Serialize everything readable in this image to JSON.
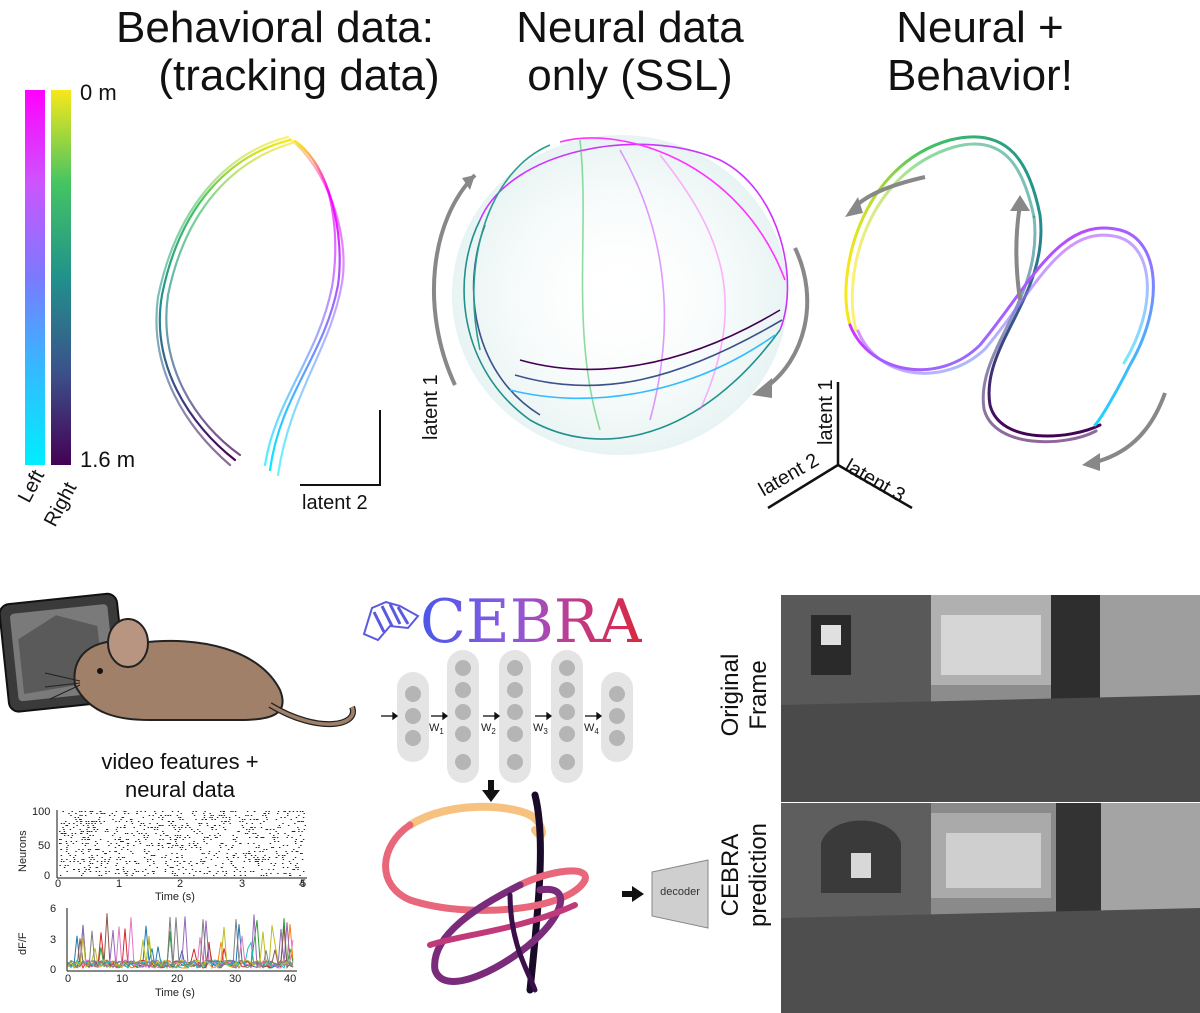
{
  "top_titles": {
    "behavioral_line1": "Behavioral data:",
    "behavioral_line2": "(tracking data)",
    "neural_line1": "Neural data",
    "neural_line2": "only (SSL)",
    "combined_line1": "Neural +",
    "combined_line2": "Behavior!"
  },
  "colorbar": {
    "top_label": "0 m",
    "bottom_label": "1.6 m",
    "left_label": "Left",
    "right_label": "Right",
    "left_colors": [
      "#ff00ff",
      "#cc55ff",
      "#7a7aff",
      "#33bbff",
      "#00eeff"
    ],
    "right_colors": [
      "#f7e81a",
      "#44c463",
      "#21918c",
      "#3b528b",
      "#440154"
    ]
  },
  "axes": {
    "latent1": "latent 1",
    "latent2": "latent 2",
    "latent3": "latent 3"
  },
  "pipeline": {
    "input_caption_line1": "video features +",
    "input_caption_line2": "neural data",
    "logo_text": "CEBRA",
    "weights": [
      "W",
      "W",
      "W",
      "W"
    ],
    "weight_subscripts": [
      "1",
      "2",
      "3",
      "4"
    ],
    "decoder_label": "decoder"
  },
  "raster_plot": {
    "ylabel": "Neurons",
    "xlabel": "Time (s)",
    "yticks": [
      "100",
      "50",
      "0"
    ],
    "xticks": [
      "0",
      "1",
      "2",
      "3",
      "4",
      "5"
    ]
  },
  "trace_plot": {
    "ylabel": "dF/F",
    "xlabel": "Time (s)",
    "yticks": [
      "6",
      "3",
      "0"
    ],
    "xticks": [
      "0",
      "10",
      "20",
      "30",
      "40"
    ]
  },
  "frames": {
    "original_line1": "Original",
    "original_line2": "Frame",
    "prediction_line1": "CEBRA",
    "prediction_line2": "prediction"
  }
}
